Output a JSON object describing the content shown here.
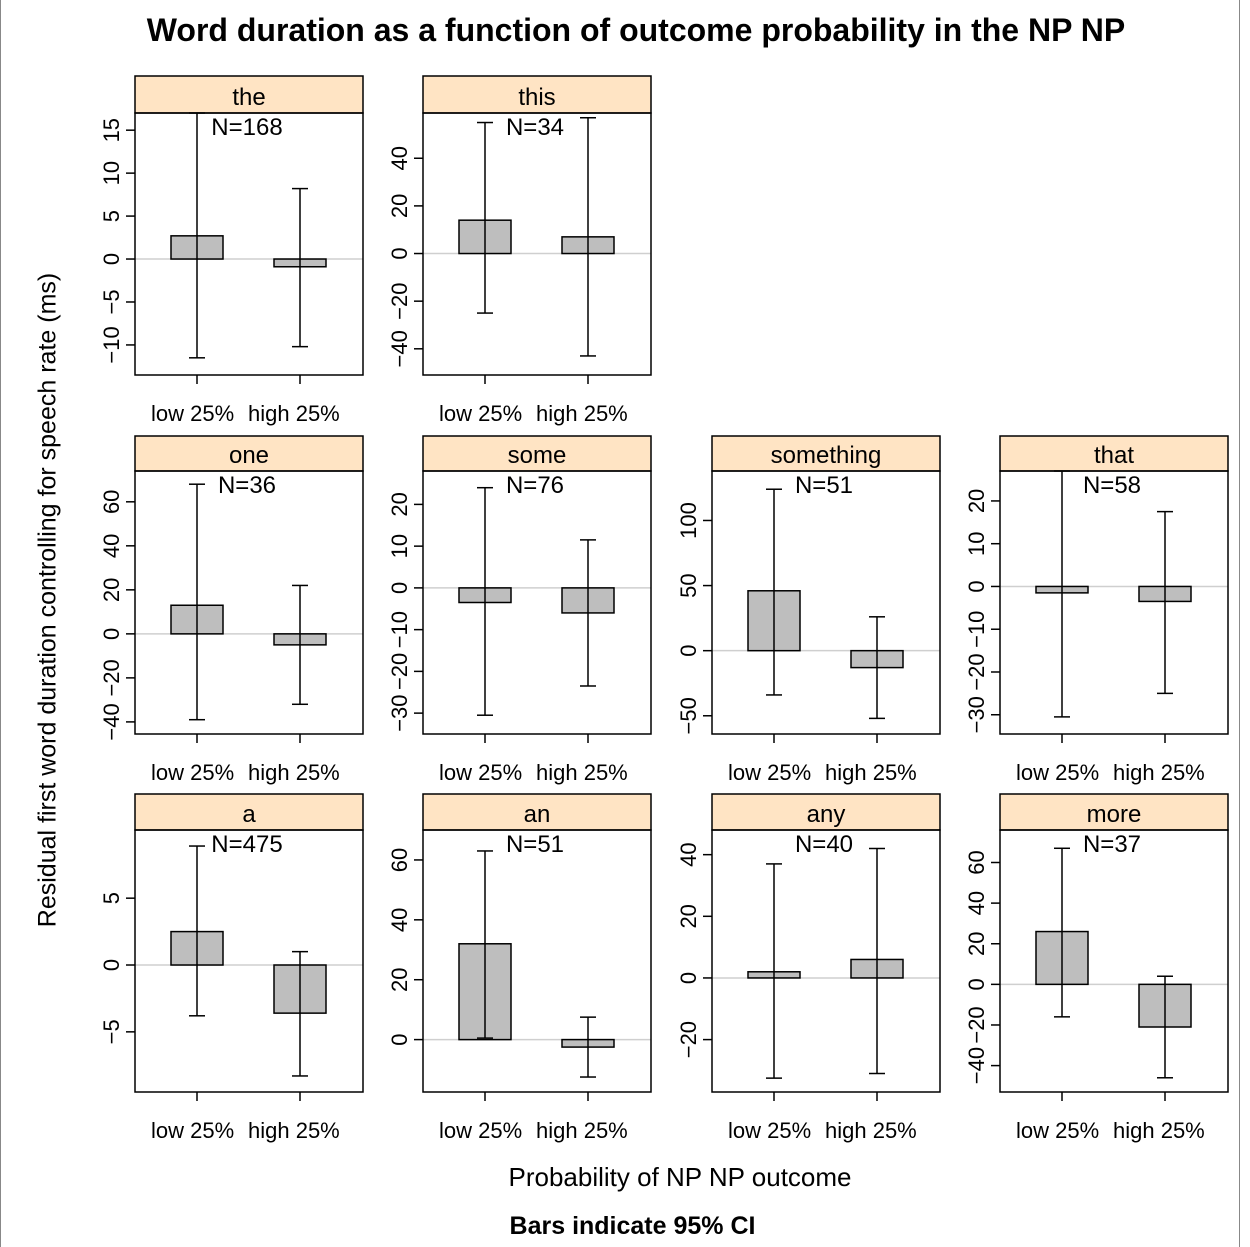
{
  "chart_data": {
    "type": "bar",
    "title": "Word duration as a function of outcome probability in the NP NP",
    "ylabel": "Residual first word duration controlling for speech rate (ms)",
    "xlabel": "Probability of NP NP outcome",
    "footnote": "Bars indicate 95% CI",
    "categories": [
      "low 25%",
      "high 25%"
    ],
    "strip_color": "#FFE4C4",
    "bar_color": "#BEBEBE",
    "panels": [
      {
        "label": "the",
        "n_label": "N=168",
        "ylim": [
          -13.5,
          17
        ],
        "yticks": [
          -10,
          -5,
          0,
          5,
          10,
          15
        ],
        "values": [
          2.7,
          -0.9
        ],
        "ci_low": [
          -11.5,
          -10.2
        ],
        "ci_high": [
          17,
          8.2
        ]
      },
      {
        "label": "this",
        "n_label": "N=34",
        "ylim": [
          -51,
          59
        ],
        "yticks": [
          -40,
          -20,
          0,
          20,
          40
        ],
        "values": [
          14,
          7
        ],
        "ci_low": [
          -25,
          -43
        ],
        "ci_high": [
          55,
          57
        ]
      },
      {
        "label": "one",
        "n_label": "N=36",
        "ylim": [
          -45.5,
          74
        ],
        "yticks": [
          -40,
          -20,
          0,
          20,
          40,
          60
        ],
        "values": [
          13,
          -5
        ],
        "ci_low": [
          -39,
          -32
        ],
        "ci_high": [
          68,
          22
        ]
      },
      {
        "label": "some",
        "n_label": "N=76",
        "ylim": [
          -35,
          28
        ],
        "yticks": [
          -30,
          -20,
          -10,
          0,
          10,
          20
        ],
        "values": [
          -3.5,
          -6
        ],
        "ci_low": [
          -30.5,
          -23.5
        ],
        "ci_high": [
          24,
          11.5
        ]
      },
      {
        "label": "something",
        "n_label": "N=51",
        "ylim": [
          -64,
          138
        ],
        "yticks": [
          -50,
          0,
          50,
          100
        ],
        "values": [
          46,
          -13
        ],
        "ci_low": [
          -34,
          -52
        ],
        "ci_high": [
          124,
          26
        ]
      },
      {
        "label": "that",
        "n_label": "N=58",
        "ylim": [
          -34.5,
          27
        ],
        "yticks": [
          -30,
          -20,
          -10,
          0,
          10,
          20
        ],
        "values": [
          -1.5,
          -3.5
        ],
        "ci_low": [
          -30.5,
          -25
        ],
        "ci_high": [
          27,
          17.5
        ]
      },
      {
        "label": "a",
        "n_label": "N=475",
        "ylim": [
          -9.5,
          10.1
        ],
        "yticks": [
          -5,
          0,
          5
        ],
        "values": [
          2.5,
          -3.6
        ],
        "ci_low": [
          -3.8,
          -8.3
        ],
        "ci_high": [
          8.9,
          1
        ]
      },
      {
        "label": "an",
        "n_label": "N=51",
        "ylim": [
          -17.5,
          70
        ],
        "yticks": [
          0,
          20,
          40,
          60
        ],
        "values": [
          32,
          -2.5
        ],
        "ci_low": [
          0.5,
          -12.5
        ],
        "ci_high": [
          63,
          7.5
        ]
      },
      {
        "label": "any",
        "n_label": "N=40",
        "ylim": [
          -37,
          48
        ],
        "yticks": [
          -20,
          0,
          20,
          40
        ],
        "values": [
          2,
          6
        ],
        "ci_low": [
          -32.5,
          -31
        ],
        "ci_high": [
          37,
          42
        ]
      },
      {
        "label": "more",
        "n_label": "N=37",
        "ylim": [
          -53,
          76
        ],
        "yticks": [
          -40,
          -20,
          0,
          20,
          40,
          60
        ],
        "values": [
          26,
          -21
        ],
        "ci_low": [
          -16,
          -46
        ],
        "ci_high": [
          67,
          4
        ]
      }
    ]
  }
}
